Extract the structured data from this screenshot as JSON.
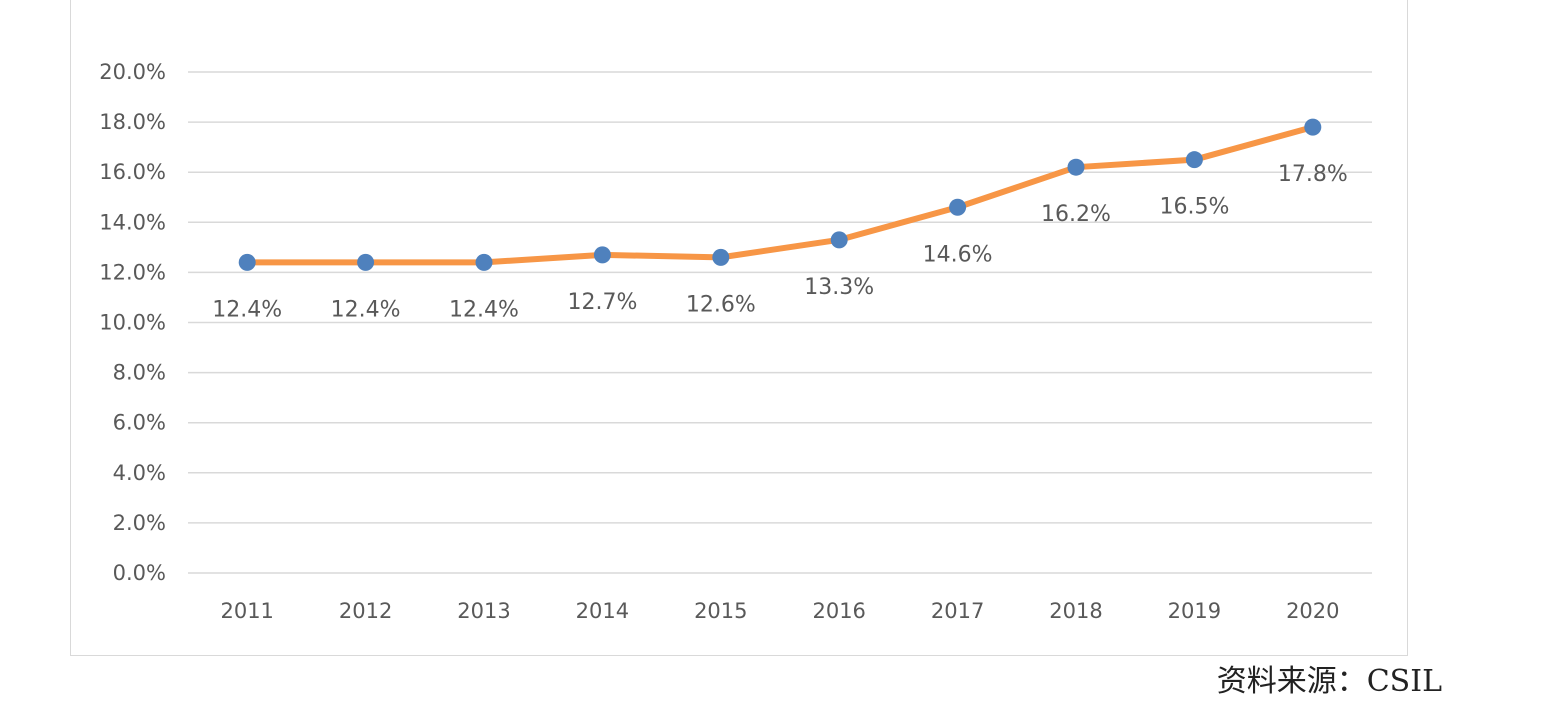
{
  "chart_data": {
    "type": "line",
    "title": "",
    "xlabel": "",
    "ylabel": "",
    "x": [
      "2011",
      "2012",
      "2013",
      "2014",
      "2015",
      "2016",
      "2017",
      "2018",
      "2019",
      "2020"
    ],
    "series": [
      {
        "values": [
          12.4,
          12.4,
          12.4,
          12.7,
          12.6,
          13.3,
          14.6,
          16.2,
          16.5,
          17.8
        ],
        "data_labels": [
          "12.4%",
          "12.4%",
          "12.4%",
          "12.7%",
          "12.6%",
          "13.3%",
          "14.6%",
          "16.2%",
          "16.5%",
          "17.8%"
        ],
        "line_color": "#F79646",
        "marker_color": "#4F81BD"
      }
    ],
    "ylim": [
      0,
      20
    ],
    "y_ticks": [
      0,
      2,
      4,
      6,
      8,
      10,
      12,
      14,
      16,
      18,
      20
    ],
    "y_tick_labels": [
      "0.0%",
      "2.0%",
      "4.0%",
      "6.0%",
      "8.0%",
      "10.0%",
      "12.0%",
      "14.0%",
      "16.0%",
      "18.0%",
      "20.0%"
    ],
    "grid": true,
    "legend": "none",
    "gridline_color": "#d9d9d9",
    "text_color": "#595959"
  },
  "source_note": "资料来源：CSIL"
}
